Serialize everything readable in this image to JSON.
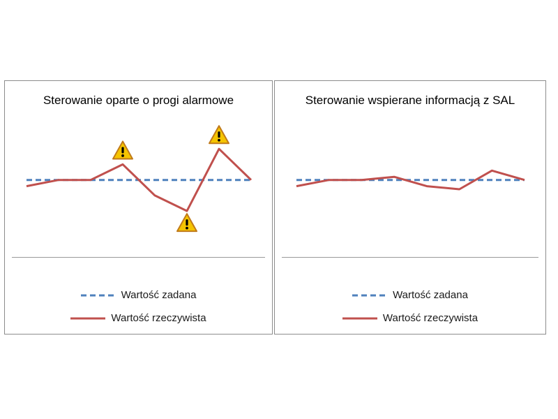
{
  "chart_data": [
    {
      "type": "line",
      "title": "Sterowanie oparte o progi alarmowe",
      "x": [
        1,
        2,
        3,
        4,
        5,
        6,
        7,
        8
      ],
      "series": [
        {
          "name": "Wartość zadana",
          "style": "dashed",
          "color": "#4f81bd",
          "values": [
            0,
            0,
            0,
            0,
            0,
            0,
            0,
            0
          ]
        },
        {
          "name": "Wartość rzeczywista",
          "style": "solid",
          "color": "#c0504d",
          "values": [
            -0.4,
            0,
            0,
            1,
            -1,
            -2,
            2,
            0
          ]
        }
      ],
      "annotations": [
        {
          "type": "warning-icon",
          "x": 4,
          "position": "above"
        },
        {
          "type": "warning-icon",
          "x": 6,
          "position": "below"
        },
        {
          "type": "warning-icon",
          "x": 7,
          "position": "above"
        }
      ],
      "ylim": [
        -4.2,
        4.8
      ],
      "legend": "bottom"
    },
    {
      "type": "line",
      "title": "Sterowanie wspierane informacją z SAL",
      "x": [
        1,
        2,
        3,
        4,
        5,
        6,
        7,
        8
      ],
      "series": [
        {
          "name": "Wartość zadana",
          "style": "dashed",
          "color": "#4f81bd",
          "values": [
            0,
            0,
            0,
            0,
            0,
            0,
            0,
            0
          ]
        },
        {
          "name": "Wartość rzeczywista",
          "style": "solid",
          "color": "#c0504d",
          "values": [
            -0.4,
            0,
            0,
            0.2,
            -0.4,
            -0.6,
            0.6,
            0
          ]
        }
      ],
      "ylim": [
        -4.2,
        4.8
      ],
      "legend": "bottom"
    }
  ]
}
